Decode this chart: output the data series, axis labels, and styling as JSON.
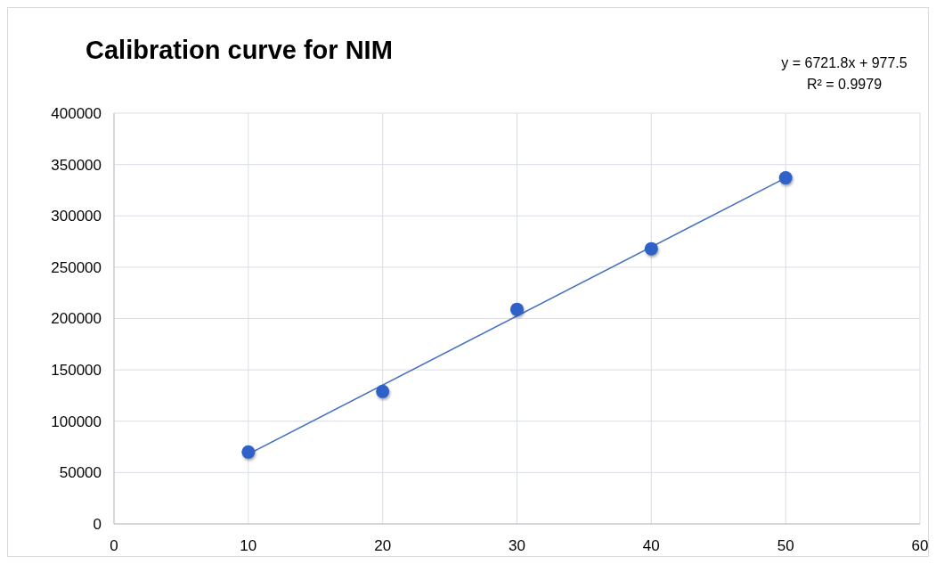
{
  "chart_data": {
    "type": "scatter",
    "title": "Calibration curve for NIM",
    "series": [
      {
        "color": "#2f62c8",
        "x": [
          10,
          20,
          30,
          40,
          50
        ],
        "values": [
          70000,
          129000,
          209000,
          268000,
          337000
        ],
        "marker": "circle"
      },
      {
        "type": "line",
        "color": "#4472c4",
        "x": [
          10,
          50
        ],
        "values": [
          68000,
          337000
        ],
        "line_style": "solid"
      }
    ],
    "annotations": [
      "y = 6721.8x + 977.5",
      "R² = 0.9979"
    ],
    "xlim": [
      0,
      60
    ],
    "xticks": [
      0,
      10,
      20,
      30,
      40,
      50,
      60
    ],
    "ylim": [
      0,
      400000
    ],
    "yticks": [
      0,
      50000,
      100000,
      150000,
      200000,
      250000,
      300000,
      350000,
      400000
    ],
    "grid": true
  }
}
